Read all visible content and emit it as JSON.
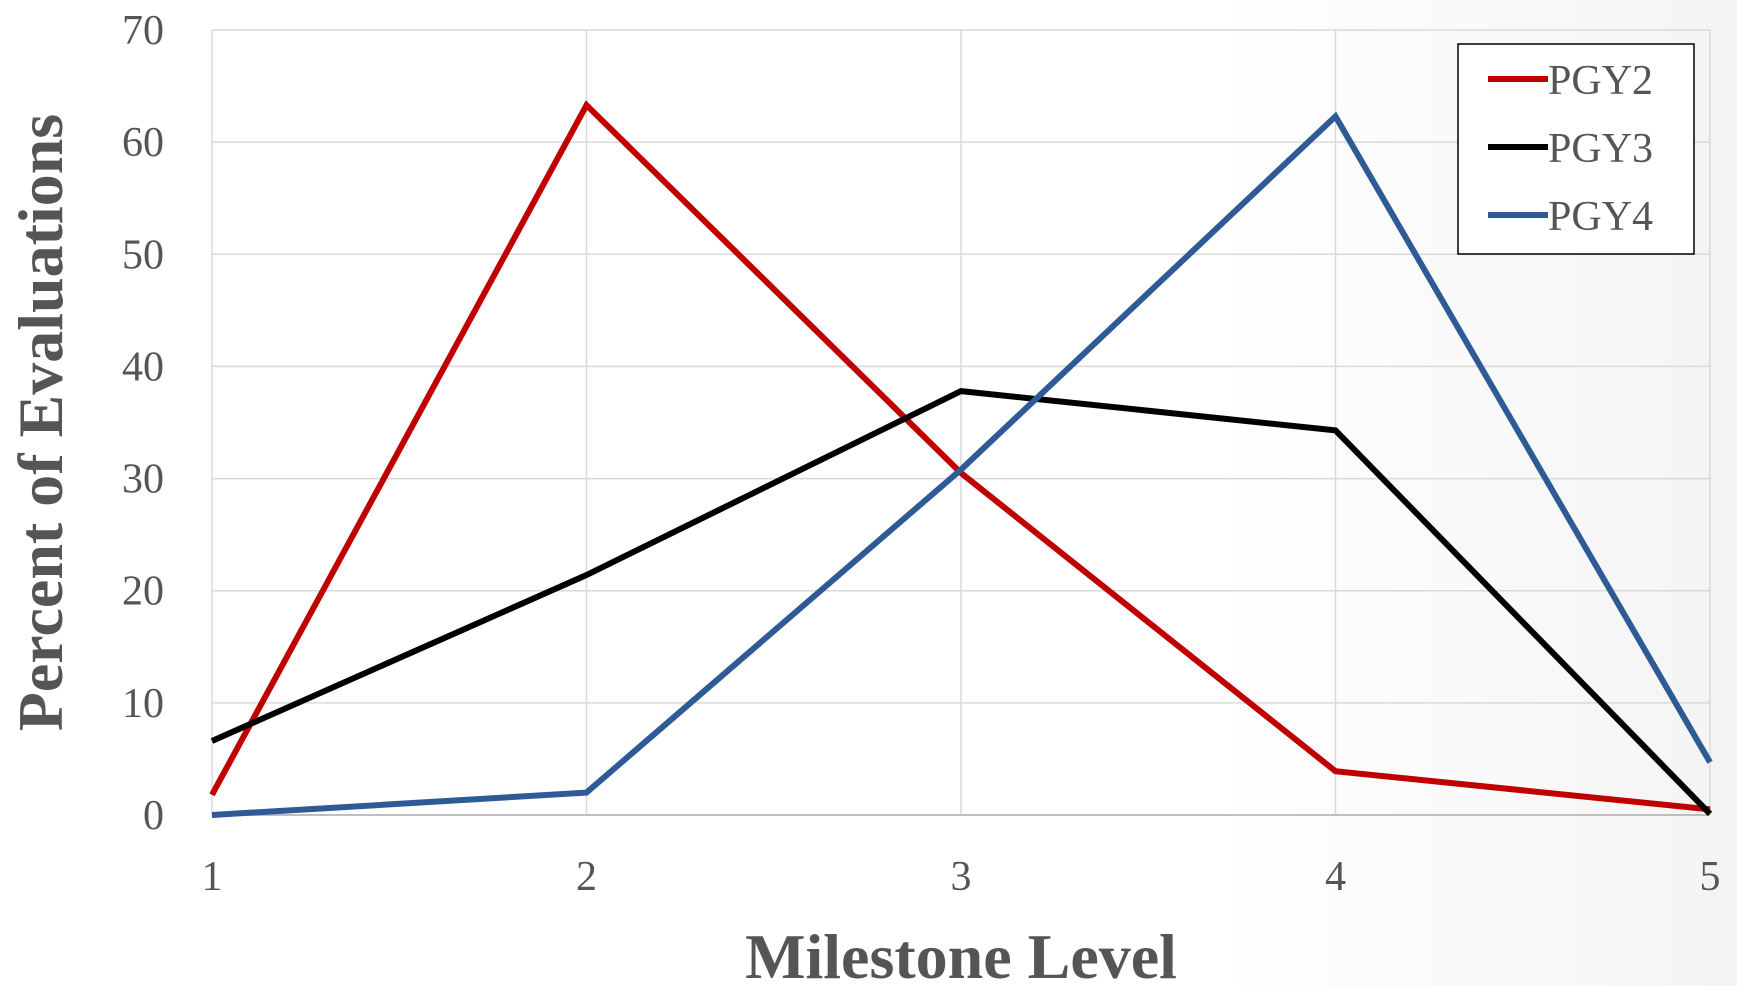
{
  "chart_data": {
    "type": "line",
    "title": "",
    "xlabel": "Milestone Level",
    "ylabel": "Percent of Evaluations",
    "x": [
      1,
      2,
      3,
      4,
      5
    ],
    "x_tick_labels": [
      "1",
      "2",
      "3",
      "4",
      "5"
    ],
    "y_tick_labels": [
      "0",
      "10",
      "20",
      "30",
      "40",
      "50",
      "60",
      "70"
    ],
    "ylim": [
      0,
      70
    ],
    "xlim": [
      1,
      5
    ],
    "grid": true,
    "legend_position": "top-right",
    "series": [
      {
        "name": "PGY2",
        "color": "#c00000",
        "values": [
          1.8,
          63.3,
          30.5,
          3.9,
          0.5
        ]
      },
      {
        "name": "PGY3",
        "color": "#000000",
        "values": [
          6.6,
          21.4,
          37.8,
          34.3,
          0.1
        ]
      },
      {
        "name": "PGY4",
        "color": "#2e5a95",
        "values": [
          0.0,
          2.0,
          30.8,
          62.3,
          4.7
        ]
      }
    ]
  }
}
